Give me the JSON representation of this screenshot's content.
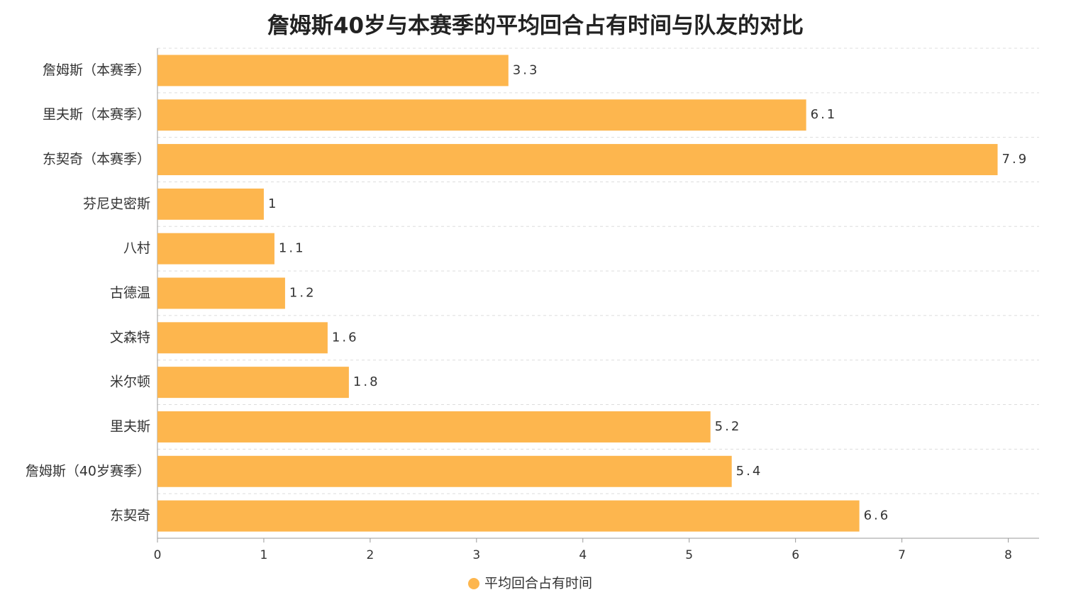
{
  "chart_data": {
    "type": "bar",
    "orientation": "horizontal",
    "title": "詹姆斯40岁与本赛季的平均回合占有时间与队友的对比",
    "categories": [
      "詹姆斯（本赛季）",
      "里夫斯（本赛季）",
      "东契奇（本赛季）",
      "芬尼史密斯",
      "八村",
      "古德温",
      "文森特",
      "米尔顿",
      "里夫斯",
      "詹姆斯（40岁赛季）",
      "东契奇"
    ],
    "series": [
      {
        "name": "平均回合占有时间",
        "color": "#FDB64E",
        "values": [
          3.3,
          6.1,
          7.9,
          1,
          1.1,
          1.2,
          1.6,
          1.8,
          5.2,
          5.4,
          6.6
        ]
      }
    ],
    "xlim": [
      0,
      8.29
    ],
    "xticks": [
      0,
      1,
      2,
      3,
      4,
      5,
      6,
      7,
      8
    ],
    "legend": "bottom"
  }
}
